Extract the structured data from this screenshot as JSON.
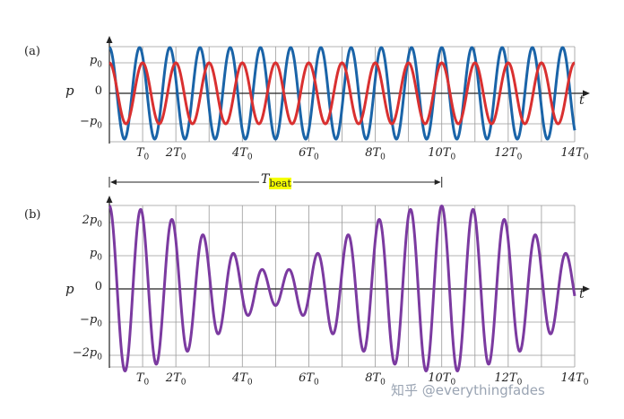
{
  "chart_data": [
    {
      "panel_label": "(a)",
      "type": "line",
      "ylabel": "p",
      "xlabel": "t",
      "xlim": [
        0,
        14
      ],
      "ylim": [
        -1.5,
        1.5
      ],
      "yticks": [
        {
          "value": 1,
          "label": "p",
          "sub": "0"
        },
        {
          "value": 0,
          "label": "0",
          "sub": ""
        },
        {
          "value": -1,
          "label": "−p",
          "sub": "0"
        }
      ],
      "xticks": [
        {
          "value": 1,
          "label": "T",
          "sub": "0"
        },
        {
          "value": 2,
          "label": "2T",
          "sub": "0"
        },
        {
          "value": 4,
          "label": "4T",
          "sub": "0"
        },
        {
          "value": 6,
          "label": "6T",
          "sub": "0"
        },
        {
          "value": 8,
          "label": "8T",
          "sub": "0"
        },
        {
          "value": 10,
          "label": "10T",
          "sub": "0"
        },
        {
          "value": 12,
          "label": "12T",
          "sub": "0"
        },
        {
          "value": 14,
          "label": "14T",
          "sub": "0"
        }
      ],
      "grid": true,
      "series": [
        {
          "color": "#1a64a8",
          "amplitude": 1.5,
          "cycles_per_T0": 1.1,
          "phase_cycles": 0
        },
        {
          "color": "#d93030",
          "amplitude": 1.0,
          "cycles_per_T0": 1.0,
          "phase_cycles": 0
        }
      ]
    },
    {
      "panel_label": "(b)",
      "type": "line",
      "ylabel": "p",
      "xlabel": "t",
      "xlim": [
        0,
        14
      ],
      "ylim": [
        -2.6,
        2.6
      ],
      "yticks": [
        {
          "value": 2,
          "label": "2p",
          "sub": "0"
        },
        {
          "value": 1,
          "label": "p",
          "sub": "0"
        },
        {
          "value": 0,
          "label": "0",
          "sub": ""
        },
        {
          "value": -1,
          "label": "−p",
          "sub": "0"
        },
        {
          "value": -2,
          "label": "−2p",
          "sub": "0"
        }
      ],
      "xticks": [
        {
          "value": 1,
          "label": "T",
          "sub": "0"
        },
        {
          "value": 2,
          "label": "2T",
          "sub": "0"
        },
        {
          "value": 4,
          "label": "4T",
          "sub": "0"
        },
        {
          "value": 6,
          "label": "6T",
          "sub": "0"
        },
        {
          "value": 8,
          "label": "8T",
          "sub": "0"
        },
        {
          "value": 10,
          "label": "10T",
          "sub": "0"
        },
        {
          "value": 12,
          "label": "12T",
          "sub": "0"
        },
        {
          "value": 14,
          "label": "14T",
          "sub": "0"
        }
      ],
      "grid": true,
      "series": [
        {
          "color": "#7b3aa0",
          "formula": "sum of panel (a) series"
        }
      ]
    }
  ],
  "beat_annotation": {
    "label": "T",
    "sub": "beat",
    "from": 0,
    "to": 10
  },
  "watermark": "知乎 @everythingfades"
}
